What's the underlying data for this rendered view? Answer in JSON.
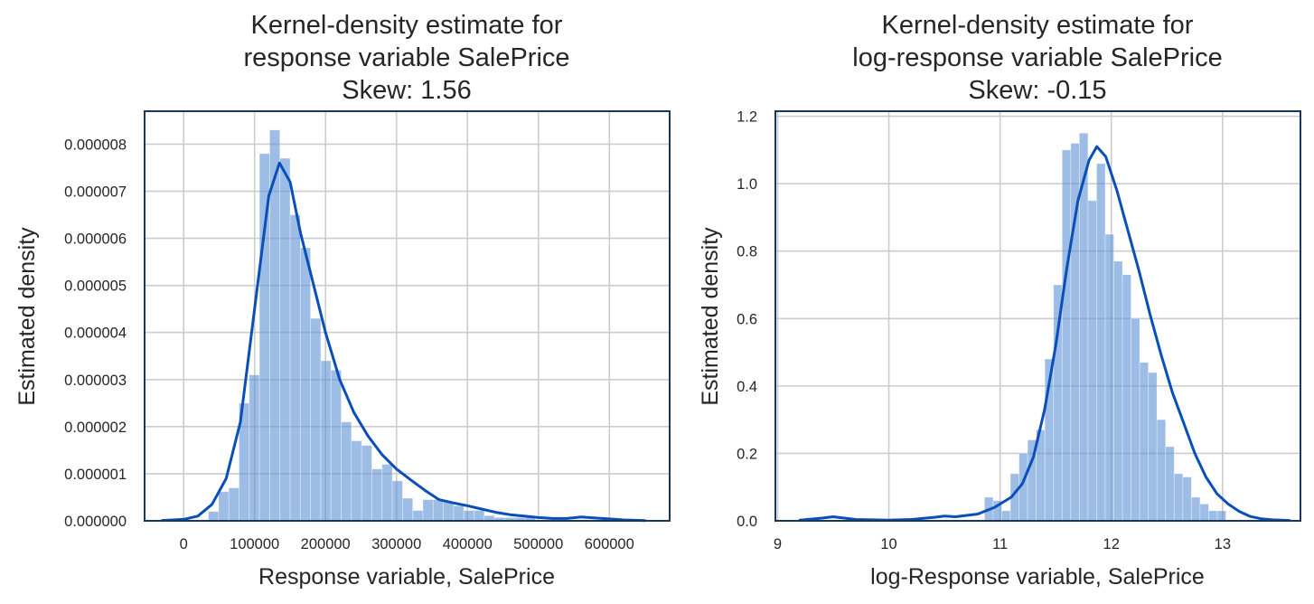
{
  "chart_data": [
    {
      "type": "histogram",
      "title": [
        "Kernel-density estimate for",
        "response variable SalePrice",
        "Skew: 1.56"
      ],
      "xlabel": "Response variable, SalePrice",
      "ylabel": "Estimated density",
      "xlim": [
        -55000,
        685000
      ],
      "ylim": [
        0,
        8.7e-06
      ],
      "xticks": [
        0,
        100000,
        200000,
        300000,
        400000,
        500000,
        600000
      ],
      "xtick_labels": [
        "0",
        "100000",
        "200000",
        "300000",
        "400000",
        "500000",
        "600000"
      ],
      "yticks": [
        0,
        1e-06,
        2e-06,
        3e-06,
        4e-06,
        5e-06,
        6e-06,
        7e-06,
        8e-06
      ],
      "ytick_labels": [
        "0.000000",
        "0.000001",
        "0.000002",
        "0.000003",
        "0.000004",
        "0.000005",
        "0.000006",
        "0.000007",
        "0.000008"
      ],
      "grid": true,
      "bins": {
        "start": 34900,
        "width": 14400,
        "values": [
          2e-07,
          6.2e-07,
          7e-07,
          2.5e-06,
          3.1e-06,
          7.8e-06,
          8.3e-06,
          7.7e-06,
          6.5e-06,
          5.8e-06,
          4.3e-06,
          3.4e-06,
          3.2e-06,
          2.1e-06,
          1.7e-06,
          1.6e-06,
          1.1e-06,
          1.2e-06,
          8.5e-07,
          4.8e-07,
          2.2e-07,
          4.5e-07,
          4.5e-07,
          4e-07,
          3.2e-07,
          2.2e-07,
          2.2e-07,
          1.1e-07,
          7e-08,
          7e-08,
          7e-08,
          7e-08
        ]
      },
      "kde": {
        "x": [
          -30000,
          0,
          20000,
          40000,
          60000,
          80000,
          100000,
          120000,
          135000,
          150000,
          165000,
          180000,
          200000,
          220000,
          240000,
          260000,
          280000,
          300000,
          320000,
          340000,
          360000,
          380000,
          400000,
          420000,
          440000,
          460000,
          480000,
          500000,
          520000,
          540000,
          560000,
          580000,
          600000,
          620000,
          650000
        ],
        "y": [
          7e-09,
          3e-08,
          1e-07,
          3.5e-07,
          9e-07,
          2.1e-06,
          4.5e-06,
          6.9e-06,
          7.6e-06,
          7.2e-06,
          6.1e-06,
          5.2e-06,
          4e-06,
          3e-06,
          2.3e-06,
          1.8e-06,
          1.4e-06,
          1.1e-06,
          8.7e-07,
          6.5e-07,
          4.5e-07,
          3.8e-07,
          3.2e-07,
          2.5e-07,
          1.8e-07,
          1.3e-07,
          1e-07,
          7e-08,
          5e-08,
          5e-08,
          8e-08,
          6e-08,
          4e-08,
          2e-08,
          5e-09
        ]
      }
    },
    {
      "type": "histogram",
      "title": [
        "Kernel-density estimate for",
        "log-response variable SalePrice",
        "Skew: -0.15"
      ],
      "xlabel": "log-Response variable, SalePrice",
      "ylabel": "Estimated density",
      "xlim": [
        8.98,
        13.7
      ],
      "ylim": [
        0,
        1.215
      ],
      "xticks": [
        9,
        10,
        11,
        12,
        13
      ],
      "xtick_labels": [
        "9",
        "10",
        "11",
        "12",
        "13"
      ],
      "yticks": [
        0,
        0.2,
        0.4,
        0.6,
        0.8,
        1.0,
        1.2
      ],
      "ytick_labels": [
        "0.0",
        "0.2",
        "0.4",
        "0.6",
        "0.8",
        "1.0",
        "1.2"
      ],
      "grid": true,
      "bins": {
        "start": 10.86,
        "width": 0.0775,
        "values": [
          0.07,
          0.06,
          0.03,
          0.14,
          0.2,
          0.24,
          0.27,
          0.48,
          0.7,
          1.1,
          1.12,
          1.15,
          0.95,
          1.06,
          0.85,
          0.77,
          0.73,
          0.6,
          0.47,
          0.44,
          0.3,
          0.22,
          0.14,
          0.13,
          0.07,
          0.05,
          0.03,
          0.03
        ]
      },
      "kde": {
        "x": [
          9.2,
          9.4,
          9.5,
          9.7,
          10.0,
          10.2,
          10.4,
          10.5,
          10.6,
          10.8,
          10.95,
          11.1,
          11.2,
          11.3,
          11.4,
          11.5,
          11.6,
          11.7,
          11.8,
          11.87,
          11.95,
          12.05,
          12.15,
          12.25,
          12.35,
          12.45,
          12.55,
          12.65,
          12.75,
          12.85,
          12.95,
          13.05,
          13.15,
          13.25,
          13.35,
          13.45,
          13.6
        ],
        "y": [
          0.002,
          0.008,
          0.012,
          0.004,
          0.002,
          0.004,
          0.01,
          0.014,
          0.012,
          0.02,
          0.04,
          0.07,
          0.11,
          0.19,
          0.33,
          0.52,
          0.75,
          0.95,
          1.07,
          1.11,
          1.08,
          0.98,
          0.86,
          0.74,
          0.61,
          0.49,
          0.38,
          0.29,
          0.2,
          0.13,
          0.08,
          0.05,
          0.028,
          0.013,
          0.006,
          0.003,
          0.001
        ]
      }
    }
  ]
}
